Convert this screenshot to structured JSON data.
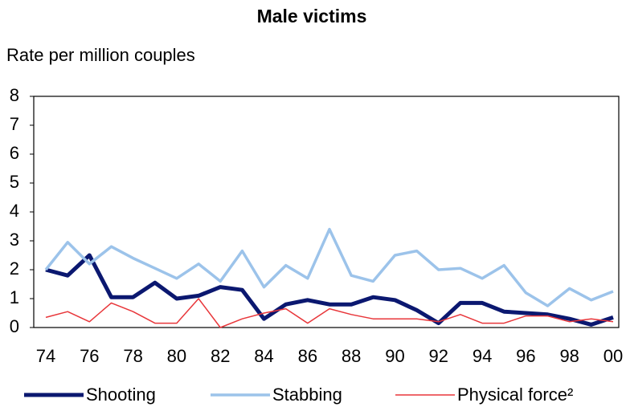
{
  "chart_data": {
    "type": "line",
    "title": "Male victims",
    "subtitle": "Rate per million couples",
    "categories": [
      "74",
      null,
      "76",
      null,
      "78",
      null,
      "80",
      null,
      "82",
      null,
      "84",
      null,
      "86",
      null,
      "88",
      null,
      "90",
      null,
      "92",
      null,
      "94",
      null,
      "96",
      null,
      "98",
      null,
      "00"
    ],
    "ylim": [
      0,
      8
    ],
    "yticks": [
      0,
      1,
      2,
      3,
      4,
      5,
      6,
      7,
      8
    ],
    "grid": false,
    "legend": "bottom",
    "series": [
      {
        "name": "Shooting",
        "color": "#0b1870",
        "values": [
          2.0,
          1.8,
          2.5,
          1.05,
          1.05,
          1.55,
          1.0,
          1.1,
          1.4,
          1.3,
          0.3,
          0.8,
          0.95,
          0.8,
          0.8,
          1.05,
          0.95,
          0.6,
          0.15,
          0.85,
          0.85,
          0.55,
          0.5,
          0.45,
          0.3,
          0.1,
          0.35
        ]
      },
      {
        "name": "Stabbing",
        "color": "#9cc3ea",
        "values": [
          2.0,
          2.95,
          2.2,
          2.8,
          2.4,
          2.05,
          1.7,
          2.2,
          1.6,
          2.65,
          1.4,
          2.15,
          1.7,
          3.4,
          1.8,
          1.6,
          2.5,
          2.65,
          2.0,
          2.05,
          1.7,
          2.15,
          1.2,
          0.75,
          1.35,
          0.95,
          1.25
        ]
      },
      {
        "name": "Physical force²",
        "color": "#e8363a",
        "values": [
          0.35,
          0.55,
          0.2,
          0.85,
          0.55,
          0.15,
          0.15,
          1.0,
          0.0,
          0.3,
          0.5,
          0.65,
          0.15,
          0.65,
          0.45,
          0.3,
          0.3,
          0.3,
          0.2,
          0.45,
          0.15,
          0.15,
          0.4,
          0.4,
          0.2,
          0.3,
          0.2
        ]
      }
    ]
  }
}
